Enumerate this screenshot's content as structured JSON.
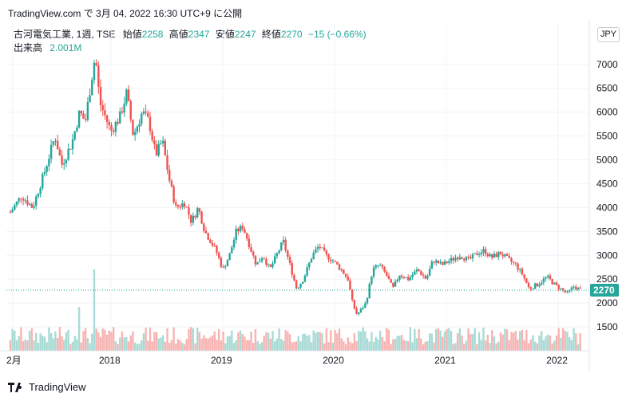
{
  "header": {
    "published": "TradingView.com で 3月 04, 2022 16:30 UTC+9 に公開"
  },
  "legend": {
    "symbol": "古河電気工業, 1週, TSE",
    "open_label": "始値",
    "open_value": "2258",
    "high_label": "高値",
    "high_value": "2347",
    "low_label": "安値",
    "low_value": "2247",
    "close_label": "終値",
    "close_value": "2270",
    "change": "−15 (−0.66%)",
    "volume_label": "出来高",
    "volume_value": "2.001M"
  },
  "currency_button": "JPY",
  "footer": {
    "brand": "TradingView"
  },
  "colors": {
    "up": "#26a69a",
    "down": "#ef5350",
    "up_volume": "#a8dbd5",
    "down_volume": "#f7b4b3",
    "last_price": "#26a69a",
    "grid": "#f0f3fa"
  },
  "chart_data": {
    "type": "candlestick",
    "y_ticks": [
      "7000",
      "6500",
      "6000",
      "5500",
      "5000",
      "4500",
      "4000",
      "3500",
      "3000",
      "2500",
      "2000",
      "1500"
    ],
    "y_tick_values": [
      7000,
      6500,
      6000,
      5500,
      5000,
      4500,
      4000,
      3500,
      3000,
      2500,
      2000,
      1500
    ],
    "x_ticks": [
      "2月",
      "2018",
      "2019",
      "2020",
      "2021",
      "2022"
    ],
    "x_tick_values": [
      2017.12,
      2018.0,
      2019.0,
      2020.0,
      2021.0,
      2022.0
    ],
    "last_price": 2270,
    "last_price_label": "2270",
    "ylim": [
      1000,
      7400
    ],
    "path": [
      [
        2017.1,
        3900
      ],
      [
        2017.2,
        4250
      ],
      [
        2017.3,
        4000
      ],
      [
        2017.4,
        4700
      ],
      [
        2017.5,
        5500
      ],
      [
        2017.56,
        4900
      ],
      [
        2017.65,
        5350
      ],
      [
        2017.72,
        6000
      ],
      [
        2017.77,
        5800
      ],
      [
        2017.82,
        6600
      ],
      [
        2017.86,
        7200
      ],
      [
        2017.9,
        6200
      ],
      [
        2018.0,
        5600
      ],
      [
        2018.08,
        5900
      ],
      [
        2018.14,
        6400
      ],
      [
        2018.2,
        5500
      ],
      [
        2018.28,
        6000
      ],
      [
        2018.34,
        5800
      ],
      [
        2018.4,
        5100
      ],
      [
        2018.46,
        5400
      ],
      [
        2018.52,
        4600
      ],
      [
        2018.58,
        4000
      ],
      [
        2018.66,
        4100
      ],
      [
        2018.72,
        3700
      ],
      [
        2018.78,
        4000
      ],
      [
        2018.84,
        3500
      ],
      [
        2018.94,
        3100
      ],
      [
        2019.0,
        2700
      ],
      [
        2019.06,
        3000
      ],
      [
        2019.12,
        3500
      ],
      [
        2019.18,
        3600
      ],
      [
        2019.24,
        3200
      ],
      [
        2019.3,
        2800
      ],
      [
        2019.36,
        3000
      ],
      [
        2019.42,
        2700
      ],
      [
        2019.48,
        3000
      ],
      [
        2019.54,
        3300
      ],
      [
        2019.6,
        2800
      ],
      [
        2019.66,
        2300
      ],
      [
        2019.72,
        2500
      ],
      [
        2019.8,
        3000
      ],
      [
        2019.86,
        3200
      ],
      [
        2019.92,
        3000
      ],
      [
        2019.98,
        2900
      ],
      [
        2020.06,
        2700
      ],
      [
        2020.12,
        2500
      ],
      [
        2020.16,
        2000
      ],
      [
        2020.2,
        1750
      ],
      [
        2020.28,
        2000
      ],
      [
        2020.34,
        2700
      ],
      [
        2020.4,
        2800
      ],
      [
        2020.46,
        2600
      ],
      [
        2020.52,
        2300
      ],
      [
        2020.58,
        2600
      ],
      [
        2020.66,
        2500
      ],
      [
        2020.74,
        2700
      ],
      [
        2020.82,
        2500
      ],
      [
        2020.88,
        2900
      ],
      [
        2020.96,
        2800
      ],
      [
        2021.04,
        2900
      ],
      [
        2021.12,
        3000
      ],
      [
        2021.2,
        2900
      ],
      [
        2021.28,
        3050
      ],
      [
        2021.34,
        3100
      ],
      [
        2021.4,
        2950
      ],
      [
        2021.48,
        3050
      ],
      [
        2021.56,
        2900
      ],
      [
        2021.62,
        2800
      ],
      [
        2021.68,
        2600
      ],
      [
        2021.74,
        2300
      ],
      [
        2021.82,
        2400
      ],
      [
        2021.9,
        2550
      ],
      [
        2021.96,
        2400
      ],
      [
        2022.02,
        2300
      ],
      [
        2022.08,
        2200
      ],
      [
        2022.14,
        2350
      ],
      [
        2022.2,
        2270
      ]
    ],
    "volume_note": "出来高 histogram along the bottom; tallest spike near late 2017"
  }
}
